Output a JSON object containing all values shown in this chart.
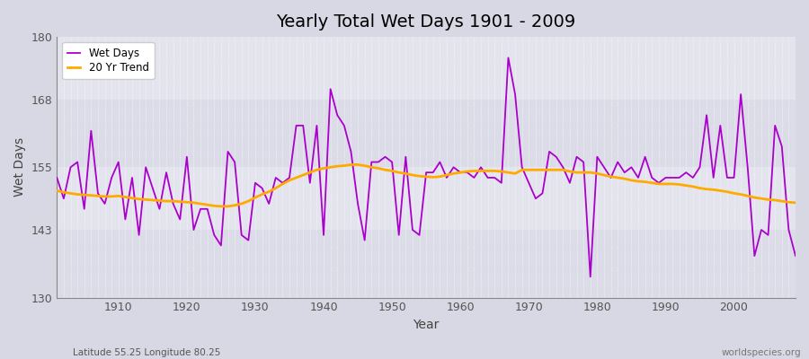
{
  "title": "Yearly Total Wet Days 1901 - 2009",
  "xlabel": "Year",
  "ylabel": "Wet Days",
  "ylim": [
    130,
    180
  ],
  "yticks": [
    130,
    143,
    155,
    168,
    180
  ],
  "xlim": [
    1901,
    2009
  ],
  "bg_color": "#e0e0e8",
  "plot_bg_light": "#e8e8f0",
  "plot_bg_dark": "#d8d8e0",
  "line_color": "#aa00cc",
  "trend_color": "#ffaa00",
  "footnote_left": "Latitude 55.25 Longitude 80.25",
  "footnote_right": "worldspecies.org",
  "wet_days": {
    "1901": 153,
    "1902": 149,
    "1903": 155,
    "1904": 156,
    "1905": 147,
    "1906": 162,
    "1907": 150,
    "1908": 148,
    "1909": 153,
    "1910": 156,
    "1911": 145,
    "1912": 153,
    "1913": 142,
    "1914": 155,
    "1915": 151,
    "1916": 147,
    "1917": 154,
    "1918": 148,
    "1919": 145,
    "1920": 157,
    "1921": 143,
    "1922": 147,
    "1923": 147,
    "1924": 142,
    "1925": 140,
    "1926": 158,
    "1927": 156,
    "1928": 142,
    "1929": 141,
    "1930": 152,
    "1931": 151,
    "1932": 148,
    "1933": 153,
    "1934": 152,
    "1935": 153,
    "1936": 163,
    "1937": 163,
    "1938": 152,
    "1939": 163,
    "1940": 142,
    "1941": 170,
    "1942": 165,
    "1943": 163,
    "1944": 158,
    "1945": 148,
    "1946": 141,
    "1947": 156,
    "1948": 156,
    "1949": 157,
    "1950": 156,
    "1951": 142,
    "1952": 157,
    "1953": 143,
    "1954": 142,
    "1955": 154,
    "1956": 154,
    "1957": 156,
    "1958": 153,
    "1959": 155,
    "1960": 154,
    "1961": 154,
    "1962": 153,
    "1963": 155,
    "1964": 153,
    "1965": 153,
    "1966": 152,
    "1967": 176,
    "1968": 169,
    "1969": 155,
    "1970": 152,
    "1971": 149,
    "1972": 150,
    "1973": 158,
    "1974": 157,
    "1975": 155,
    "1976": 152,
    "1977": 157,
    "1978": 156,
    "1979": 134,
    "1980": 157,
    "1981": 155,
    "1982": 153,
    "1983": 156,
    "1984": 154,
    "1985": 155,
    "1986": 153,
    "1987": 157,
    "1988": 153,
    "1989": 152,
    "1990": 153,
    "1991": 153,
    "1992": 153,
    "1993": 154,
    "1994": 153,
    "1995": 155,
    "1996": 165,
    "1997": 153,
    "1998": 163,
    "1999": 153,
    "2000": 153,
    "2001": 169,
    "2002": 155,
    "2003": 138,
    "2004": 143,
    "2005": 142,
    "2006": 163,
    "2007": 159,
    "2008": 143,
    "2009": 138
  },
  "trend_20yr": {
    "1901": 150.5,
    "1902": 150.2,
    "1903": 150.0,
    "1904": 149.8,
    "1905": 149.7,
    "1906": 149.6,
    "1907": 149.5,
    "1908": 149.4,
    "1909": 149.4,
    "1910": 149.5,
    "1911": 149.3,
    "1912": 149.1,
    "1913": 148.9,
    "1914": 148.8,
    "1915": 148.7,
    "1916": 148.6,
    "1917": 148.5,
    "1918": 148.5,
    "1919": 148.4,
    "1920": 148.3,
    "1921": 148.2,
    "1922": 148.0,
    "1923": 147.8,
    "1924": 147.6,
    "1925": 147.5,
    "1926": 147.5,
    "1927": 147.7,
    "1928": 148.0,
    "1929": 148.5,
    "1930": 149.2,
    "1931": 149.8,
    "1932": 150.3,
    "1933": 151.0,
    "1934": 151.8,
    "1935": 152.5,
    "1936": 153.0,
    "1937": 153.5,
    "1938": 154.0,
    "1939": 154.5,
    "1940": 154.8,
    "1941": 155.0,
    "1942": 155.2,
    "1943": 155.3,
    "1944": 155.5,
    "1945": 155.5,
    "1946": 155.3,
    "1947": 155.0,
    "1948": 154.8,
    "1949": 154.5,
    "1950": 154.3,
    "1951": 154.0,
    "1952": 153.8,
    "1953": 153.5,
    "1954": 153.3,
    "1955": 153.2,
    "1956": 153.1,
    "1957": 153.2,
    "1958": 153.5,
    "1959": 153.8,
    "1960": 154.0,
    "1961": 154.2,
    "1962": 154.3,
    "1963": 154.3,
    "1964": 154.3,
    "1965": 154.3,
    "1966": 154.2,
    "1967": 154.0,
    "1968": 153.8,
    "1969": 154.5,
    "1970": 154.5,
    "1971": 154.5,
    "1972": 154.5,
    "1973": 154.5,
    "1974": 154.5,
    "1975": 154.5,
    "1976": 154.2,
    "1977": 154.0,
    "1978": 154.0,
    "1979": 154.0,
    "1980": 153.8,
    "1981": 153.5,
    "1982": 153.2,
    "1983": 153.0,
    "1984": 152.8,
    "1985": 152.5,
    "1986": 152.3,
    "1987": 152.2,
    "1988": 152.0,
    "1989": 151.8,
    "1990": 151.8,
    "1991": 151.8,
    "1992": 151.7,
    "1993": 151.5,
    "1994": 151.3,
    "1995": 151.0,
    "1996": 150.8,
    "1997": 150.7,
    "1998": 150.5,
    "1999": 150.3,
    "2000": 150.0,
    "2001": 149.8,
    "2002": 149.5,
    "2003": 149.2,
    "2004": 149.0,
    "2005": 148.8,
    "2006": 148.7,
    "2007": 148.5,
    "2008": 148.3,
    "2009": 148.2
  },
  "band_colors": [
    "#dcdce8",
    "#e4e4ee"
  ],
  "grid_color": "#ffffff"
}
